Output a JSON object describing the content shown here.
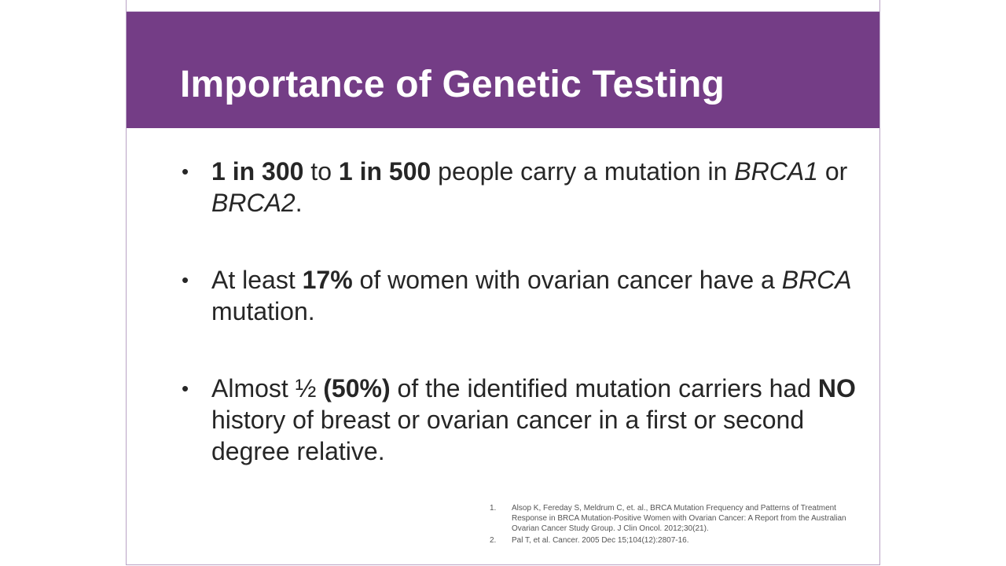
{
  "slide": {
    "title": "Importance of Genetic Testing",
    "bullets": [
      {
        "marker": "•",
        "parts": [
          {
            "text": "1 in 300",
            "style": "bold"
          },
          {
            "text": " to ",
            "style": "normal"
          },
          {
            "text": "1 in 500",
            "style": "bold"
          },
          {
            "text": " people carry a mutation in ",
            "style": "normal"
          },
          {
            "text": "BRCA1",
            "style": "italic"
          },
          {
            "text": " or ",
            "style": "normal"
          },
          {
            "text": "BRCA2",
            "style": "italic"
          },
          {
            "text": ".",
            "style": "normal"
          }
        ]
      },
      {
        "marker": "•",
        "parts": [
          {
            "text": "At least ",
            "style": "normal"
          },
          {
            "text": "17%",
            "style": "bold"
          },
          {
            "text": " of women with ovarian cancer have a ",
            "style": "normal"
          },
          {
            "text": "BRCA",
            "style": "italic"
          },
          {
            "text": " mutation.",
            "style": "normal"
          }
        ]
      },
      {
        "marker": "•",
        "parts": [
          {
            "text": "Almost ½ ",
            "style": "normal"
          },
          {
            "text": "(50%)",
            "style": "bold"
          },
          {
            "text": " of the identified mutation carriers had ",
            "style": "normal"
          },
          {
            "text": "NO",
            "style": "bold"
          },
          {
            "text": " history of breast or ovarian cancer in a first or second degree relative.",
            "style": "normal"
          }
        ]
      }
    ],
    "references": [
      {
        "number": "1.",
        "text": "Alsop K, Fereday S, Meldrum C, et. al., BRCA Mutation Frequency and Patterns of Treatment Response in BRCA Mutation-Positive Women with Ovarian Cancer: A Report from the Australian Ovarian Cancer Study Group. J Clin Oncol. 2012;30(21)."
      },
      {
        "number": "2.",
        "text": "Pal T, et al. Cancer. 2005 Dec 15;104(12):2807-16."
      }
    ],
    "colors": {
      "title_bar": "#743d86",
      "title_text": "#ffffff",
      "body_text": "#262626",
      "reference_text": "#555555",
      "slide_border": "#b9a3c4"
    }
  }
}
